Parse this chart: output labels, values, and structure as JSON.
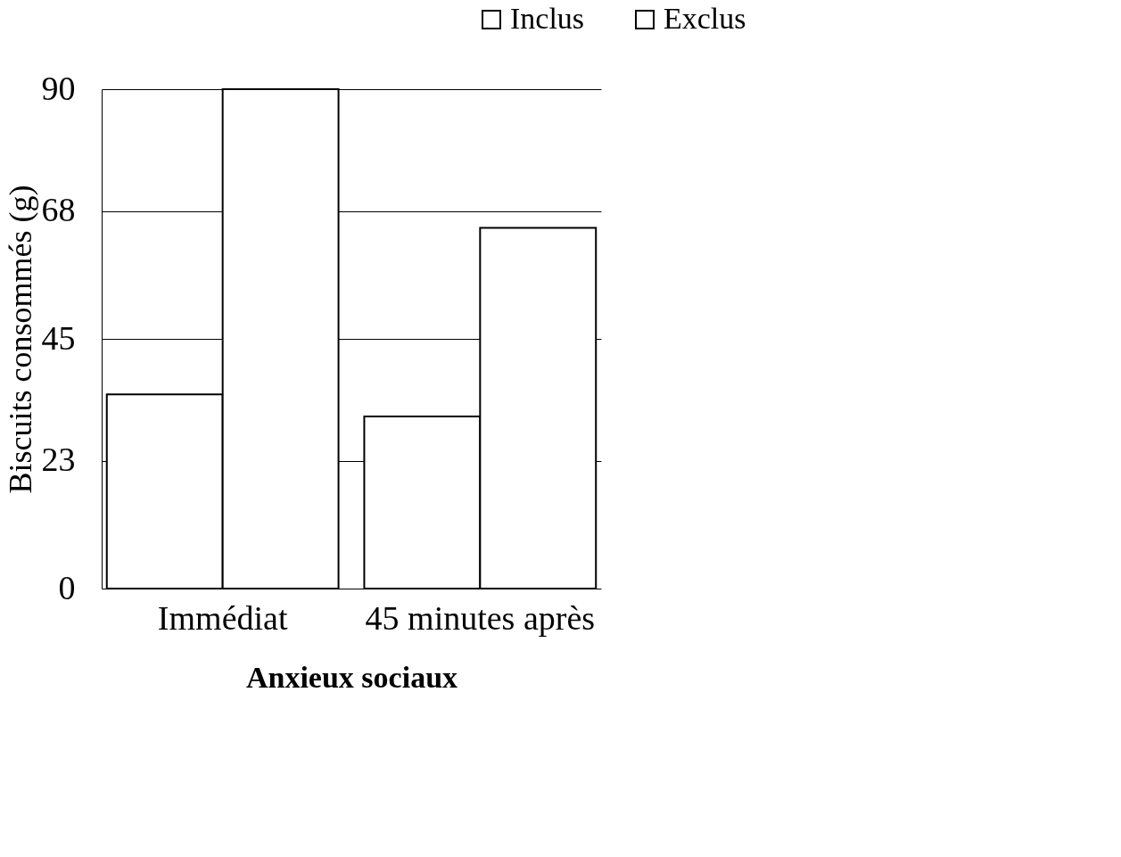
{
  "chart_data": {
    "type": "bar",
    "ylabel": "Biscuits consommés (g)",
    "xlabel": "Anxieux sociaux",
    "categories": [
      "Immédiat",
      "45 minutes après"
    ],
    "series": [
      {
        "name": "Inclus",
        "color": "#ffffff",
        "values": [
          35,
          31
        ]
      },
      {
        "name": "Exclus",
        "color": "#ffffff",
        "values": [
          90,
          65
        ]
      }
    ],
    "ylim": [
      0,
      90
    ],
    "yticks": [
      0,
      23,
      45,
      68,
      90
    ],
    "grid": "y",
    "legend": "top right"
  }
}
